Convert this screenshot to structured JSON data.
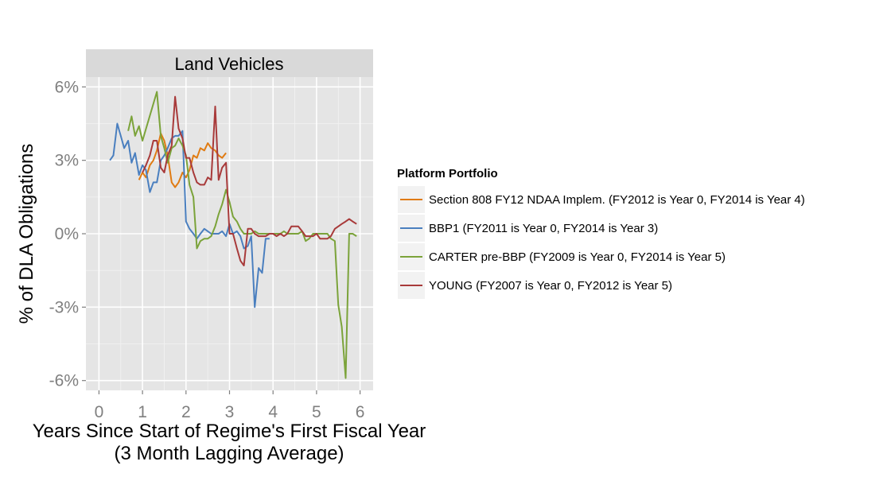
{
  "chart_data": {
    "type": "line",
    "facet_title": "Land Vehicles",
    "xlabel": "Years Since Start of Regime's First Fiscal Year",
    "xlabel_line2": "(3 Month Lagging Average)",
    "ylabel": "% of DLA Obligations",
    "xlim": [
      -0.3,
      6.3
    ],
    "ylim": [
      -6.4,
      6.4
    ],
    "x_ticks": [
      0,
      1,
      2,
      3,
      4,
      5,
      6
    ],
    "x_tick_labels": [
      "0",
      "1",
      "2",
      "3",
      "4",
      "5",
      "6"
    ],
    "y_ticks": [
      -6,
      -3,
      0,
      3,
      6
    ],
    "y_tick_labels": [
      "-6%",
      "-3%",
      "0%",
      "3%",
      "6%"
    ],
    "grid": true,
    "legend_position": "right",
    "legend_title": "Platform Portfolio",
    "series": [
      {
        "name": "Section 808 FY12 NDAA Implem. (FY2012 is Year 0, FY2014 is Year 4)",
        "color": "#e07b12",
        "x": [
          0.92,
          1.0,
          1.08,
          1.17,
          1.25,
          1.33,
          1.42,
          1.5,
          1.58,
          1.67,
          1.75,
          1.83,
          1.92,
          2.0,
          2.08,
          2.17,
          2.25,
          2.33,
          2.42,
          2.5,
          2.58,
          2.67,
          2.75,
          2.83,
          2.92
        ],
        "y": [
          2.2,
          2.5,
          2.3,
          2.8,
          3.0,
          3.4,
          4.1,
          3.8,
          3.2,
          2.1,
          1.9,
          2.1,
          2.5,
          2.3,
          2.6,
          3.2,
          3.1,
          3.5,
          3.4,
          3.7,
          3.5,
          3.4,
          3.2,
          3.1,
          3.3
        ]
      },
      {
        "name": "BBP1 (FY2011 is Year 0, FY2014 is Year 3)",
        "color": "#4a7fbf",
        "x": [
          0.25,
          0.33,
          0.42,
          0.5,
          0.58,
          0.67,
          0.75,
          0.83,
          0.92,
          1.0,
          1.08,
          1.17,
          1.25,
          1.33,
          1.42,
          1.5,
          1.58,
          1.67,
          1.75,
          1.83,
          1.92,
          2.0,
          2.08,
          2.17,
          2.25,
          2.33,
          2.42,
          2.5,
          2.58,
          2.67,
          2.75,
          2.83,
          2.92,
          3.0,
          3.08,
          3.17,
          3.25,
          3.33,
          3.42,
          3.5,
          3.58,
          3.67,
          3.75,
          3.83,
          3.92
        ],
        "y": [
          3.0,
          3.2,
          4.5,
          4.0,
          3.5,
          3.8,
          2.9,
          3.3,
          2.4,
          2.8,
          2.6,
          1.7,
          2.1,
          2.1,
          3.0,
          3.2,
          3.5,
          3.9,
          4.0,
          4.0,
          4.2,
          0.5,
          0.2,
          0.0,
          -0.2,
          0.0,
          0.2,
          0.1,
          0.0,
          0.0,
          0.0,
          0.1,
          -0.1,
          0.4,
          0.0,
          0.1,
          -0.1,
          -0.6,
          -0.5,
          -0.1,
          -3.0,
          -1.4,
          -1.6,
          -0.2,
          -0.2
        ]
      },
      {
        "name": "CARTER pre-BBP (FY2009 is Year 0, FY2014 is Year 5)",
        "color": "#7ba33a",
        "x": [
          0.67,
          0.75,
          0.83,
          0.92,
          1.0,
          1.33,
          1.42,
          1.5,
          1.58,
          1.67,
          1.75,
          1.83,
          1.92,
          2.0,
          2.08,
          2.17,
          2.25,
          2.33,
          2.42,
          2.5,
          2.58,
          2.67,
          2.75,
          2.83,
          2.92,
          3.0,
          3.08,
          3.17,
          3.25,
          3.33,
          3.42,
          3.5,
          3.58,
          3.67,
          3.75,
          3.83,
          3.92,
          4.0,
          4.08,
          4.17,
          4.25,
          4.33,
          4.42,
          4.5,
          4.58,
          4.67,
          4.75,
          4.83,
          4.92,
          5.0,
          5.08,
          5.17,
          5.25,
          5.33,
          5.42,
          5.5,
          5.58,
          5.67,
          5.75,
          5.83,
          5.92
        ],
        "y": [
          4.2,
          4.8,
          4.0,
          4.4,
          3.8,
          5.8,
          4.0,
          3.5,
          2.9,
          3.5,
          3.6,
          3.9,
          3.6,
          3.2,
          2.0,
          1.5,
          -0.6,
          -0.3,
          -0.2,
          -0.2,
          -0.1,
          0.3,
          0.8,
          1.2,
          1.8,
          1.3,
          0.7,
          0.5,
          0.2,
          0.0,
          0.0,
          0.0,
          0.1,
          0.0,
          0.0,
          0.0,
          0.0,
          0.0,
          0.0,
          0.0,
          0.1,
          0.0,
          0.0,
          0.0,
          0.0,
          0.1,
          -0.3,
          -0.2,
          0.0,
          0.0,
          0.0,
          0.0,
          0.0,
          -0.2,
          -0.3,
          -2.9,
          -3.8,
          -5.9,
          0.0,
          0.0,
          -0.1
        ]
      },
      {
        "name": "YOUNG (FY2007 is Year 0, FY2012 is Year 5)",
        "color": "#a83a3a",
        "x": [
          1.0,
          1.08,
          1.17,
          1.25,
          1.33,
          1.42,
          1.5,
          1.58,
          1.67,
          1.75,
          1.83,
          1.92,
          2.0,
          2.08,
          2.17,
          2.25,
          2.33,
          2.42,
          2.5,
          2.58,
          2.67,
          2.75,
          2.83,
          2.92,
          3.0,
          3.08,
          3.17,
          3.25,
          3.33,
          3.42,
          3.5,
          3.58,
          3.67,
          3.75,
          3.83,
          3.92,
          4.0,
          4.08,
          4.17,
          4.25,
          4.33,
          4.42,
          4.5,
          4.58,
          4.67,
          4.75,
          4.83,
          4.92,
          5.0,
          5.08,
          5.17,
          5.25,
          5.33,
          5.42,
          5.5,
          5.58,
          5.67,
          5.75,
          5.83,
          5.92
        ],
        "y": [
          2.5,
          2.8,
          3.2,
          3.8,
          3.8,
          2.7,
          2.5,
          3.2,
          3.6,
          5.6,
          4.3,
          3.9,
          3.1,
          3.1,
          2.5,
          2.1,
          2.0,
          2.0,
          2.3,
          2.2,
          5.2,
          2.2,
          2.7,
          2.9,
          0.0,
          0.0,
          -0.6,
          -1.1,
          -1.3,
          0.2,
          0.2,
          0.0,
          -0.1,
          -0.1,
          -0.1,
          0.0,
          0.0,
          -0.1,
          0.0,
          -0.1,
          0.0,
          0.3,
          0.3,
          0.3,
          0.1,
          -0.1,
          -0.1,
          -0.1,
          0.0,
          -0.2,
          -0.2,
          -0.2,
          -0.1,
          0.2,
          0.3,
          0.4,
          0.5,
          0.6,
          0.5,
          0.4
        ]
      }
    ]
  }
}
